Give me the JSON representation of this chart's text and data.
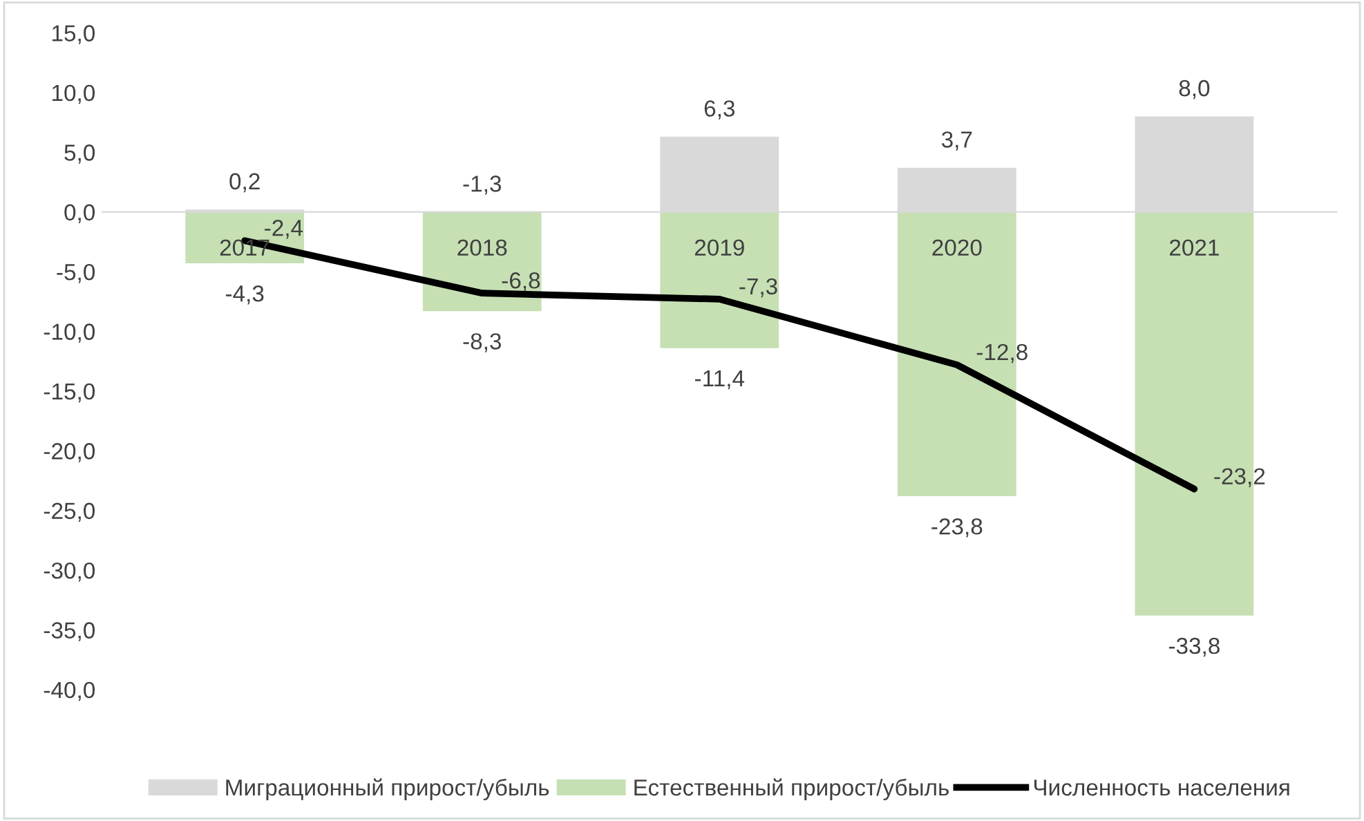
{
  "chart_data": {
    "type": "bar",
    "categories": [
      "2017",
      "2018",
      "2019",
      "2020",
      "2021"
    ],
    "series": [
      {
        "name": "Миграционный прирост/убыль",
        "color": "#d9d9d9",
        "values": [
          0.2,
          null,
          6.3,
          3.7,
          8.0
        ],
        "value_labels": [
          "0,2",
          "-1,3",
          "6,3",
          "3,7",
          "8,0"
        ]
      },
      {
        "name": "Естественный прирост/убыль",
        "color": "#c6e0b4",
        "values": [
          -4.3,
          -8.3,
          -11.4,
          -23.8,
          -33.8
        ],
        "value_labels": [
          "-4,3",
          "-8,3",
          "-11,4",
          "-23,8",
          "-33,8"
        ]
      },
      {
        "name": "Численность населения",
        "type": "line",
        "color": "#000000",
        "values": [
          -2.4,
          -6.8,
          -7.3,
          -12.8,
          -23.2
        ],
        "value_labels": [
          "-2,4",
          "-6,8",
          "-7,3",
          "-12,8",
          "-23,2"
        ]
      }
    ],
    "ylim": [
      -40,
      15
    ],
    "yticks": [
      {
        "value": 15,
        "label": "15,0"
      },
      {
        "value": 10,
        "label": "10,0"
      },
      {
        "value": 5,
        "label": "5,0"
      },
      {
        "value": 0,
        "label": "0,0"
      },
      {
        "value": -5,
        "label": "-5,0"
      },
      {
        "value": -10,
        "label": "-10,0"
      },
      {
        "value": -15,
        "label": "-15,0"
      },
      {
        "value": -20,
        "label": "-20,0"
      },
      {
        "value": -25,
        "label": "-25,0"
      },
      {
        "value": -30,
        "label": "-30,0"
      },
      {
        "value": -35,
        "label": "-35,0"
      },
      {
        "value": -40,
        "label": "-40,0"
      }
    ],
    "stacked": true,
    "grid": false,
    "legend": "bottom",
    "marker": "none",
    "line_style": "solid"
  }
}
